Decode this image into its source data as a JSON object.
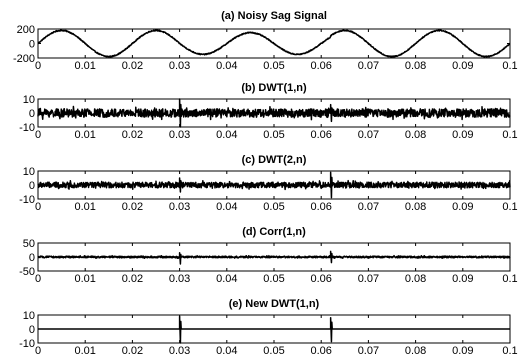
{
  "chart_data": [
    {
      "type": "line",
      "title": "(a) Noisy Sag Signal",
      "xlabel": "",
      "ylabel": "",
      "xlim": [
        0,
        0.1
      ],
      "ylim": [
        -200,
        200
      ],
      "xticks": [
        "0",
        "0.01",
        "0.02",
        "0.03",
        "0.04",
        "0.05",
        "0.06",
        "0.07",
        "0.08",
        "0.09",
        "0.1"
      ],
      "yticks": [
        "200",
        "0",
        "-200"
      ],
      "grid": false,
      "series": [
        {
          "values": "sinusoid, frequency 50 Hz, amplitude approx. 180; amplitude drops to approx. 150 between x = 0.03 and x = 0.062; small additive noise",
          "frequency_hz": 50,
          "amplitude": 180,
          "sag_amplitude": 150,
          "sag_start": 0.03,
          "sag_end": 0.062
        }
      ]
    },
    {
      "type": "line",
      "title": "(b) DWT(1,n)",
      "xlabel": "",
      "ylabel": "",
      "xlim": [
        0,
        0.1
      ],
      "ylim": [
        -10,
        10
      ],
      "xticks": [
        "0",
        "0.01",
        "0.02",
        "0.03",
        "0.04",
        "0.05",
        "0.06",
        "0.07",
        "0.08",
        "0.09",
        "0.1"
      ],
      "yticks": [
        "10",
        "0",
        "-10"
      ],
      "grid": false,
      "series": [
        {
          "values": "noise of amplitude approx. 3 around 0; spikes at x = 0.03 (approx. -10 to 10) and x = 0.062 (approx. -6 to 6)",
          "noise_amplitude": 3,
          "events": [
            {
              "x": 0.03,
              "min": -10,
              "max": 10
            },
            {
              "x": 0.062,
              "min": -6,
              "max": 6
            }
          ]
        }
      ]
    },
    {
      "type": "line",
      "title": "(c) DWT(2,n)",
      "xlabel": "",
      "ylabel": "",
      "xlim": [
        0,
        0.1
      ],
      "ylim": [
        -10,
        10
      ],
      "xticks": [
        "0",
        "0.01",
        "0.02",
        "0.03",
        "0.04",
        "0.05",
        "0.06",
        "0.07",
        "0.08",
        "0.09",
        "0.1"
      ],
      "yticks": [
        "10",
        "0",
        "-10"
      ],
      "grid": false,
      "series": [
        {
          "values": "noise of amplitude approx. 2 around 0; spikes at x = 0.03 (approx. -5 to 5) and x = 0.062 (approx. -9 to 9)",
          "noise_amplitude": 2,
          "events": [
            {
              "x": 0.03,
              "min": -5,
              "max": 5
            },
            {
              "x": 0.062,
              "min": -9,
              "max": 9
            }
          ]
        }
      ]
    },
    {
      "type": "line",
      "title": "(d) Corr(1,n)",
      "xlabel": "",
      "ylabel": "",
      "xlim": [
        0,
        0.1
      ],
      "ylim": [
        -50,
        50
      ],
      "xticks": [
        "0",
        "0.01",
        "0.02",
        "0.03",
        "0.04",
        "0.05",
        "0.06",
        "0.07",
        "0.08",
        "0.09",
        "0.1"
      ],
      "yticks": [
        "50",
        "0",
        "-50"
      ],
      "grid": false,
      "series": [
        {
          "values": "near-zero noise (approx. 3) around 0; spikes at x = 0.03 (approx. -25 to 15) and x = 0.062 (approx. -20 to 20)",
          "noise_amplitude": 3,
          "events": [
            {
              "x": 0.03,
              "min": -25,
              "max": 15
            },
            {
              "x": 0.062,
              "min": -20,
              "max": 20
            }
          ]
        }
      ]
    },
    {
      "type": "line",
      "title": "(e) New DWT(1,n)",
      "xlabel": "",
      "ylabel": "",
      "xlim": [
        0,
        0.1
      ],
      "ylim": [
        -10,
        10
      ],
      "xticks": [
        "0",
        "0.01",
        "0.02",
        "0.03",
        "0.04",
        "0.05",
        "0.06",
        "0.07",
        "0.08",
        "0.09",
        "0.1"
      ],
      "yticks": [
        "10",
        "0",
        "-10"
      ],
      "grid": false,
      "series": [
        {
          "values": "zero everywhere except spikes at x = 0.03 (approx. -10 to 9) and x = 0.062 (approx. -9 to 8)",
          "noise_amplitude": 0,
          "events": [
            {
              "x": 0.03,
              "min": -10,
              "max": 9
            },
            {
              "x": 0.062,
              "min": -9,
              "max": 8
            }
          ]
        }
      ]
    }
  ]
}
